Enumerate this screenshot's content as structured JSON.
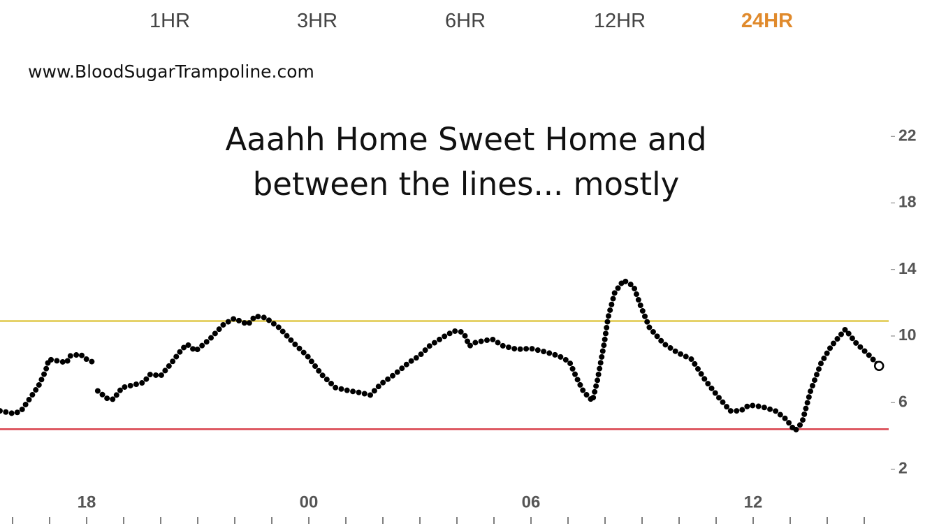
{
  "tabs": [
    "1HR",
    "3HR",
    "6HR",
    "12HR",
    "24HR"
  ],
  "active_tab": 4,
  "active_color": "#e08a2c",
  "site": "www.BloodSugarTrampoline.com",
  "chart_data": {
    "type": "scatter",
    "title": "Aaahh Home Sweet Home and between the lines... mostly",
    "color": "#000000",
    "x": [
      15.66,
      16.04,
      16.23,
      16.42,
      16.7,
      16.89,
      16.98,
      17.46,
      17.55,
      17.83,
      18.0,
      18.25,
      null,
      18.3,
      18.58,
      18.72,
      18.96,
      19.34,
      19.53,
      19.72,
      20.0,
      20.28,
      20.57,
      20.72,
      20.94,
      21.32,
      21.7,
      21.98,
      22.36,
      22.55,
      22.83,
      23.2,
      23.58,
      23.96,
      24.34,
      24.72,
      25.1,
      25.38,
      25.66,
      25.94,
      26.32,
      26.7,
      26.98,
      27.26,
      27.64,
      27.92,
      28.11,
      28.2,
      28.34,
      28.49,
      28.68,
      28.96,
      29.25,
      29.62,
      30.0,
      30.38,
      30.75,
      31.04,
      31.23,
      31.42,
      31.66,
      31.79,
      31.98,
      32.08,
      32.26,
      32.5,
      32.77,
      32.98,
      33.2,
      33.58,
      33.96,
      34.34,
      34.72,
      35.09,
      35.38,
      35.66,
      35.89,
      36.23,
      36.6,
      36.89,
      37.13,
      37.32,
      37.55,
      37.83,
      38.11,
      38.49,
      38.77,
      39.15,
      39.4
    ],
    "values": [
      5.5,
      5.33,
      5.5,
      6.1,
      7.0,
      7.9,
      8.6,
      8.4,
      8.8,
      8.9,
      8.6,
      8.35,
      null,
      6.7,
      6.2,
      6.2,
      6.9,
      7.1,
      7.2,
      7.7,
      7.6,
      8.35,
      9.2,
      9.5,
      9.1,
      9.8,
      10.7,
      11.05,
      10.7,
      11.2,
      11.1,
      10.5,
      9.6,
      8.8,
      7.7,
      6.9,
      6.7,
      6.6,
      6.45,
      7.1,
      7.7,
      8.4,
      8.8,
      9.4,
      9.95,
      10.3,
      10.25,
      10.1,
      9.4,
      9.6,
      9.7,
      9.8,
      9.4,
      9.2,
      9.25,
      9.05,
      8.8,
      8.45,
      7.5,
      6.65,
      6.1,
      7.3,
      9.6,
      11.1,
      12.6,
      13.35,
      13.0,
      11.7,
      10.5,
      9.55,
      9.0,
      8.6,
      7.3,
      6.25,
      5.5,
      5.5,
      5.85,
      5.75,
      5.5,
      5.0,
      4.3,
      4.8,
      6.7,
      8.35,
      9.4,
      10.4,
      9.6,
      8.8,
      8.2
    ],
    "xlim": [
      15.66,
      39.66
    ],
    "xticks": [
      {
        "value": 18,
        "label": "18"
      },
      {
        "value": 24,
        "label": "00"
      },
      {
        "value": 30,
        "label": "06"
      },
      {
        "value": 36,
        "label": "12"
      }
    ],
    "xminorticks": [
      16,
      17,
      18,
      19,
      20,
      21,
      22,
      23,
      24,
      25,
      26,
      27,
      28,
      29,
      30,
      31,
      32,
      33,
      34,
      35,
      36,
      37,
      38,
      39
    ],
    "ylim": [
      -1.3,
      23.9
    ],
    "yticks": [
      2,
      6,
      10,
      14,
      18,
      22
    ],
    "thresholds": [
      {
        "value": 10.9,
        "color": "#e0c84a"
      },
      {
        "value": 4.4,
        "color": "#d9434e"
      }
    ]
  }
}
